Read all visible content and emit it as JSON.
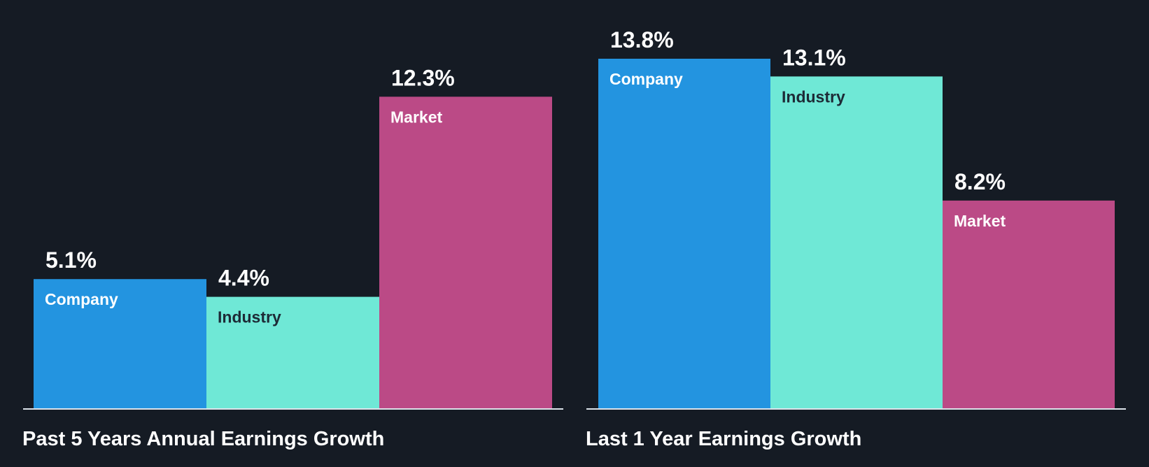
{
  "colors": {
    "background": "#151b24",
    "company": "#2394e0",
    "industry": "#6fe8d6",
    "market": "#bb4a86",
    "axis": "#dce3ea",
    "label_light": "#ffffff",
    "label_dark": "#1d2a36"
  },
  "chart_data": [
    {
      "type": "bar",
      "title": "Past 5 Years Annual Earnings Growth",
      "categories": [
        "Company",
        "Industry",
        "Market"
      ],
      "values": [
        5.1,
        4.4,
        12.3
      ],
      "value_labels": [
        "5.1%",
        "4.4%",
        "12.3%"
      ],
      "unit": "%",
      "ylim": [
        0,
        13.8
      ],
      "xlabel": "",
      "ylabel": "",
      "grid": false
    },
    {
      "type": "bar",
      "title": "Last 1 Year Earnings Growth",
      "categories": [
        "Company",
        "Industry",
        "Market"
      ],
      "values": [
        13.8,
        13.1,
        8.2
      ],
      "value_labels": [
        "13.8%",
        "13.1%",
        "8.2%"
      ],
      "unit": "%",
      "ylim": [
        0,
        13.8
      ],
      "xlabel": "",
      "ylabel": "",
      "grid": false
    }
  ]
}
